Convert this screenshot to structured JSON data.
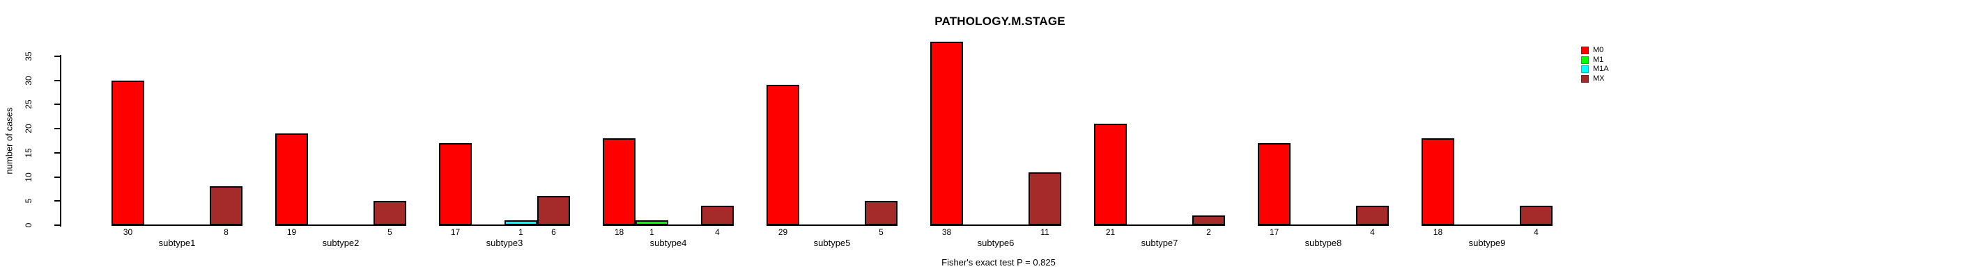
{
  "page": {
    "background": "#FFFFFF"
  },
  "chart_data": {
    "type": "bar",
    "title": "PATHOLOGY.M.STAGE",
    "ylabel": "number of cases",
    "xlabel": "",
    "footnote": "Fisher's exact test P = 0.825",
    "categories": [
      "subtype1",
      "subtype2",
      "subtype3",
      "subtype4",
      "subtype5",
      "subtype6",
      "subtype7",
      "subtype8",
      "subtype9"
    ],
    "series": [
      {
        "name": "M0",
        "color": "#FF0000",
        "values": [
          30,
          19,
          17,
          18,
          29,
          38,
          21,
          17,
          18
        ]
      },
      {
        "name": "M1",
        "color": "#00FF00",
        "values": [
          0,
          0,
          0,
          1,
          0,
          0,
          0,
          0,
          0
        ]
      },
      {
        "name": "M1A",
        "color": "#00FFFF",
        "values": [
          0,
          0,
          1,
          0,
          0,
          0,
          0,
          0,
          0
        ]
      },
      {
        "name": "MX",
        "color": "#A52A2A",
        "values": [
          8,
          5,
          6,
          4,
          5,
          11,
          2,
          4,
          4
        ]
      }
    ],
    "yticks": [
      0,
      5,
      10,
      15,
      20,
      25,
      30,
      35
    ],
    "ylim": [
      0,
      38
    ],
    "grid": false,
    "legend_position": "top-right",
    "legend_entries": [
      "M0",
      "M1",
      "M1A",
      "MX"
    ],
    "bar_value_labels_shown_for": "nonzero bars only",
    "axis_color": "#000000",
    "bar_border_color": "#000000"
  }
}
